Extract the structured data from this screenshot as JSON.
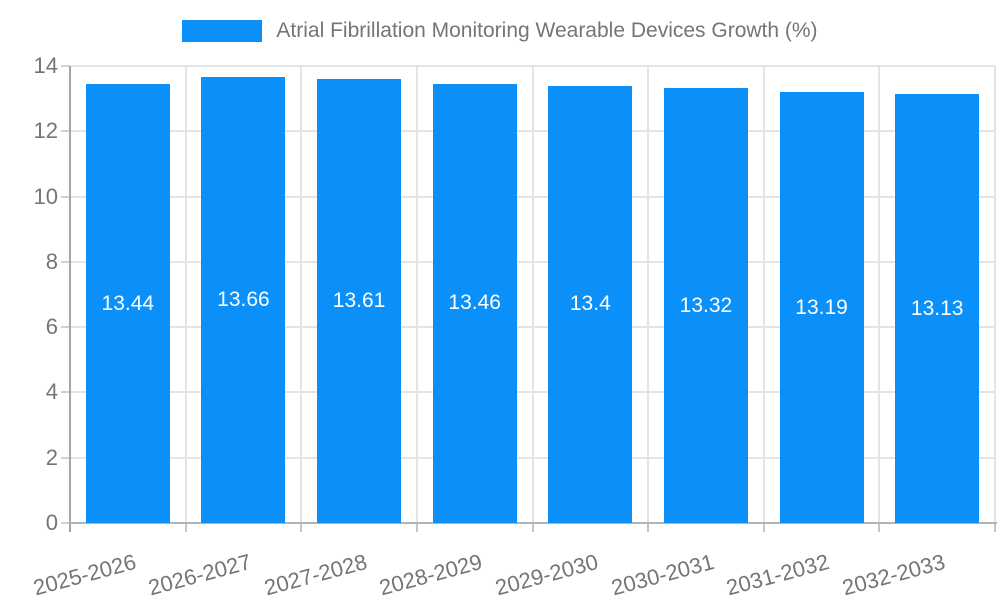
{
  "chart_data": {
    "type": "bar",
    "title": "Atrial Fibrillation Monitoring Wearable Devices Growth (%)",
    "categories": [
      "2025-2026",
      "2026-2027",
      "2027-2028",
      "2028-2029",
      "2029-2030",
      "2030-2031",
      "2031-2032",
      "2032-2033"
    ],
    "values": [
      13.44,
      13.66,
      13.61,
      13.46,
      13.4,
      13.32,
      13.19,
      13.13
    ],
    "value_labels": [
      "13.44",
      "13.66",
      "13.61",
      "13.46",
      "13.4",
      "13.32",
      "13.19",
      "13.13"
    ],
    "xlabel": "",
    "ylabel": "",
    "ylim": [
      0,
      14
    ],
    "yticks": [
      0,
      2,
      4,
      6,
      8,
      10,
      12,
      14
    ],
    "grid": true,
    "legend_position": "top-center",
    "colors": {
      "bar": "#0a90f8",
      "bar_value_text": "#ffffff",
      "axis_text": "#757575",
      "gridline": "#e4e4e4",
      "axis_line": "#a6a6a6"
    }
  }
}
